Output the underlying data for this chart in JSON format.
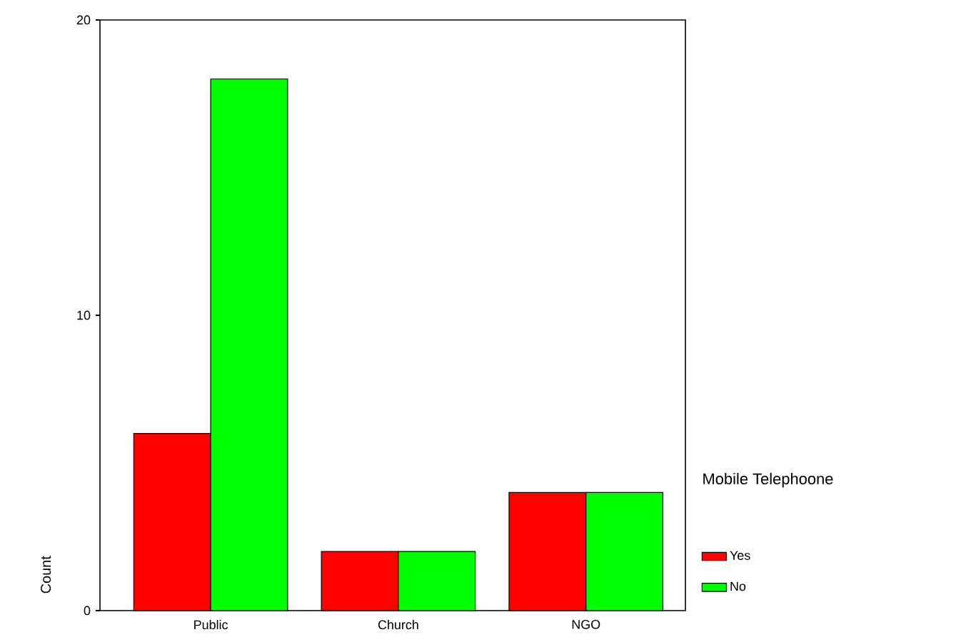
{
  "chart_data": {
    "type": "bar",
    "ylabel": "Count",
    "legend_title": "Mobile Telephoone",
    "categories": [
      "Public",
      "Church",
      "NGO"
    ],
    "series": [
      {
        "name": "Yes",
        "color": "#ff0000",
        "values": [
          6,
          2,
          4
        ]
      },
      {
        "name": "No",
        "color": "#00ff00",
        "values": [
          18,
          2,
          4
        ]
      }
    ],
    "ylim": [
      0,
      20
    ],
    "yticks": [
      0,
      10,
      20
    ],
    "grid": false,
    "legend": "right"
  }
}
